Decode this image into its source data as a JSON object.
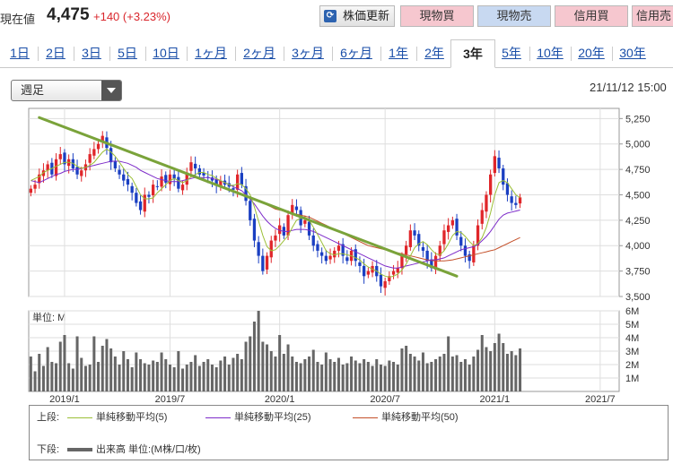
{
  "header": {
    "price_label": "現在値",
    "price_value": "4,475",
    "price_change": "+140 (+3.23%)",
    "buttons": {
      "refresh": "株価更新",
      "spot_buy": "現物買",
      "spot_sell": "現物売",
      "margin_buy": "信用買",
      "margin_sell": "信用売"
    }
  },
  "tabs": [
    "1日",
    "2日",
    "3日",
    "5日",
    "10日",
    "1ヶ月",
    "2ヶ月",
    "3ヶ月",
    "6ヶ月",
    "1年",
    "2年",
    "3年",
    "5年",
    "10年",
    "20年",
    "30年"
  ],
  "active_tab": "3年",
  "select": {
    "value": "週足"
  },
  "datetime": "21/11/12 15:00",
  "colors": {
    "up": "#e0262a",
    "down": "#1a3fc2",
    "ma5": "#9bbf36",
    "ma25": "#7d2bc9",
    "ma50": "#c4502a",
    "trend": "#7aa33a",
    "volume": "#666666"
  },
  "chart_data": {
    "type": "candlestick",
    "price": {
      "ylim": [
        3500,
        5350
      ],
      "ticks": [
        "5,250",
        "5,000",
        "4,750",
        "4,500",
        "4,250",
        "4,000",
        "3,750",
        "3,500"
      ],
      "tick_values": [
        5250,
        5000,
        4750,
        4500,
        4250,
        4000,
        3750,
        3500
      ],
      "close_series": [
        4560,
        4600,
        4700,
        4740,
        4800,
        4700,
        4850,
        4900,
        4800,
        4850,
        4760,
        4700,
        4740,
        4800,
        4900,
        4950,
        5000,
        5080,
        4960,
        4820,
        4760,
        4700,
        4640,
        4600,
        4520,
        4420,
        4350,
        4500,
        4480,
        4600,
        4580,
        4680,
        4620,
        4700,
        4660,
        4560,
        4600,
        4720,
        4820,
        4760,
        4700,
        4690,
        4670,
        4640,
        4590,
        4640,
        4600,
        4580,
        4550,
        4700,
        4600,
        4440,
        4250,
        4050,
        3900,
        3750,
        3900,
        4050,
        4100,
        4200,
        4100,
        4300,
        4400,
        4350,
        4200,
        4250,
        4100,
        4000,
        3950,
        3900,
        3850,
        3900,
        3950,
        4000,
        3900,
        3850,
        3950,
        3850,
        3800,
        3700,
        3750,
        3800,
        3700,
        3600,
        3650,
        3700,
        3750,
        3780,
        3900,
        4000,
        4150,
        4100,
        4000,
        3950,
        3850,
        3780,
        3900,
        4000,
        4150,
        4200,
        4250,
        4100,
        4000,
        3900,
        3850,
        4000,
        4200,
        4350,
        4500,
        4700,
        4880,
        4760,
        4600,
        4500,
        4420,
        4400,
        4475
      ],
      "ma5_series": [
        4640,
        4660,
        4680,
        4720,
        4740,
        4760,
        4780,
        4800,
        4820,
        4820,
        4810,
        4780,
        4760,
        4770,
        4790,
        4820,
        4870,
        4920,
        4950,
        4920,
        4880,
        4820,
        4760,
        4700,
        4660,
        4580,
        4500,
        4460,
        4460,
        4470,
        4520,
        4560,
        4600,
        4640,
        4660,
        4640,
        4620,
        4640,
        4680,
        4700,
        4720,
        4720,
        4700,
        4690,
        4660,
        4640,
        4620,
        4600,
        4590,
        4610,
        4600,
        4560,
        4500,
        4380,
        4240,
        4100,
        3990,
        3950,
        3960,
        4000,
        4050,
        4100,
        4180,
        4250,
        4270,
        4280,
        4250,
        4180,
        4110,
        4030,
        3950,
        3920,
        3910,
        3920,
        3920,
        3910,
        3900,
        3880,
        3860,
        3820,
        3790,
        3770,
        3750,
        3720,
        3700,
        3690,
        3700,
        3720,
        3760,
        3820,
        3900,
        3980,
        4020,
        4040,
        4010,
        3960,
        3920,
        3910,
        3950,
        4020,
        4100,
        4140,
        4130,
        4090,
        4040,
        4000,
        4020,
        4080,
        4180,
        4320,
        4500,
        4620,
        4640,
        4620,
        4560,
        4500,
        4470
      ],
      "ma25_series": [
        4640,
        4630,
        4620,
        4640,
        4660,
        4680,
        4700,
        4710,
        4730,
        4740,
        4750,
        4750,
        4760,
        4770,
        4780,
        4790,
        4800,
        4810,
        4820,
        4830,
        4830,
        4830,
        4820,
        4810,
        4790,
        4770,
        4740,
        4720,
        4700,
        4680,
        4660,
        4650,
        4640,
        4630,
        4630,
        4630,
        4640,
        4650,
        4660,
        4670,
        4670,
        4670,
        4670,
        4660,
        4650,
        4640,
        4620,
        4600,
        4580,
        4560,
        4540,
        4500,
        4460,
        4410,
        4350,
        4290,
        4240,
        4200,
        4170,
        4150,
        4140,
        4140,
        4150,
        4160,
        4160,
        4160,
        4150,
        4140,
        4120,
        4100,
        4080,
        4060,
        4040,
        4020,
        4000,
        3980,
        3960,
        3940,
        3920,
        3900,
        3880,
        3860,
        3840,
        3820,
        3800,
        3790,
        3780,
        3780,
        3790,
        3800,
        3810,
        3820,
        3830,
        3840,
        3850,
        3860,
        3860,
        3870,
        3880,
        3900,
        3920,
        3940,
        3960,
        3970,
        3980,
        3990,
        4010,
        4050,
        4090,
        4140,
        4200,
        4260,
        4300,
        4320,
        4330,
        4340,
        4350
      ],
      "ma50_series": [
        null,
        null,
        null,
        null,
        null,
        null,
        null,
        null,
        null,
        null,
        null,
        null,
        null,
        null,
        null,
        null,
        null,
        null,
        null,
        null,
        null,
        null,
        null,
        null,
        null,
        null,
        null,
        null,
        null,
        null,
        null,
        null,
        null,
        null,
        null,
        null,
        null,
        null,
        null,
        null,
        null,
        null,
        null,
        null,
        null,
        null,
        null,
        null,
        null,
        null,
        4500,
        4490,
        4480,
        4460,
        4440,
        4420,
        4400,
        4380,
        4360,
        4350,
        4340,
        4330,
        4320,
        4310,
        4300,
        4290,
        4280,
        4260,
        4240,
        4220,
        4200,
        4180,
        4160,
        4140,
        4120,
        4100,
        4080,
        4060,
        4040,
        4020,
        4000,
        3990,
        3980,
        3970,
        3960,
        3950,
        3940,
        3930,
        3920,
        3910,
        3900,
        3890,
        3880,
        3870,
        3860,
        3855,
        3850,
        3850,
        3850,
        3855,
        3860,
        3870,
        3880,
        3890,
        3900,
        3910,
        3920,
        3930,
        3940,
        3950,
        3960,
        3980,
        4000,
        4020,
        4040,
        4060,
        4080
      ],
      "trendline": {
        "from": [
          2,
          5260
        ],
        "to": [
          101,
          3700
        ]
      }
    },
    "volume": {
      "unit_label": "単位: M",
      "ticks": [
        "6M",
        "5M",
        "4M",
        "3M",
        "2M",
        "1M"
      ],
      "tick_values": [
        6,
        5,
        4,
        3,
        2,
        1
      ],
      "ylim": [
        0,
        6
      ],
      "values": [
        2.6,
        1.5,
        2.8,
        1.9,
        3.3,
        2.2,
        2.1,
        3.7,
        4.2,
        2.1,
        1.7,
        4.1,
        2.5,
        1.9,
        2.0,
        4.1,
        2.2,
        3.4,
        3.9,
        3.2,
        2.6,
        2.0,
        3.0,
        2.4,
        1.8,
        2.9,
        2.4,
        2.1,
        2.0,
        2.3,
        2.2,
        2.9,
        2.4,
        2.0,
        1.8,
        3.0,
        1.7,
        2.0,
        2.2,
        2.7,
        1.9,
        2.2,
        2.4,
        2.0,
        1.8,
        2.3,
        2.6,
        2.0,
        2.5,
        2.8,
        2.4,
        3.7,
        4.1,
        5.2,
        6.0,
        3.7,
        3.5,
        3.0,
        2.6,
        4.2,
        2.8,
        3.5,
        2.6,
        2.2,
        2.1,
        2.4,
        2.6,
        3.1,
        2.2,
        2.0,
        2.9,
        2.4,
        2.2,
        2.5,
        2.0,
        2.1,
        2.6,
        2.3,
        2.1,
        2.4,
        2.2,
        1.9,
        2.4,
        2.0,
        1.9,
        2.3,
        2.2,
        2.0,
        3.2,
        3.4,
        2.8,
        2.6,
        2.3,
        2.9,
        2.1,
        2.2,
        2.4,
        2.6,
        2.8,
        4.1,
        2.6,
        2.7,
        2.2,
        2.4,
        2.0,
        2.6,
        3.1,
        4.2,
        3.3,
        3.0,
        3.6,
        4.3,
        3.6,
        2.8,
        3.0,
        2.7,
        3.2
      ]
    },
    "x_ticks": [
      {
        "label": "2019/1",
        "index": 8
      },
      {
        "label": "2019/7",
        "index": 33
      },
      {
        "label": "2020/1",
        "index": 59
      },
      {
        "label": "2020/7",
        "index": 84
      },
      {
        "label": "2021/1",
        "index": 110
      },
      {
        "label": "2021/7",
        "index": 135
      }
    ],
    "x_count": 140
  },
  "legend": {
    "upper_label": "上段:",
    "lower_label": "下段:",
    "ma5": "単純移動平均(5)",
    "ma25": "単純移動平均(25)",
    "ma50": "単純移動平均(50)",
    "volume": "出来高 単位:(M株/口/枚)"
  }
}
